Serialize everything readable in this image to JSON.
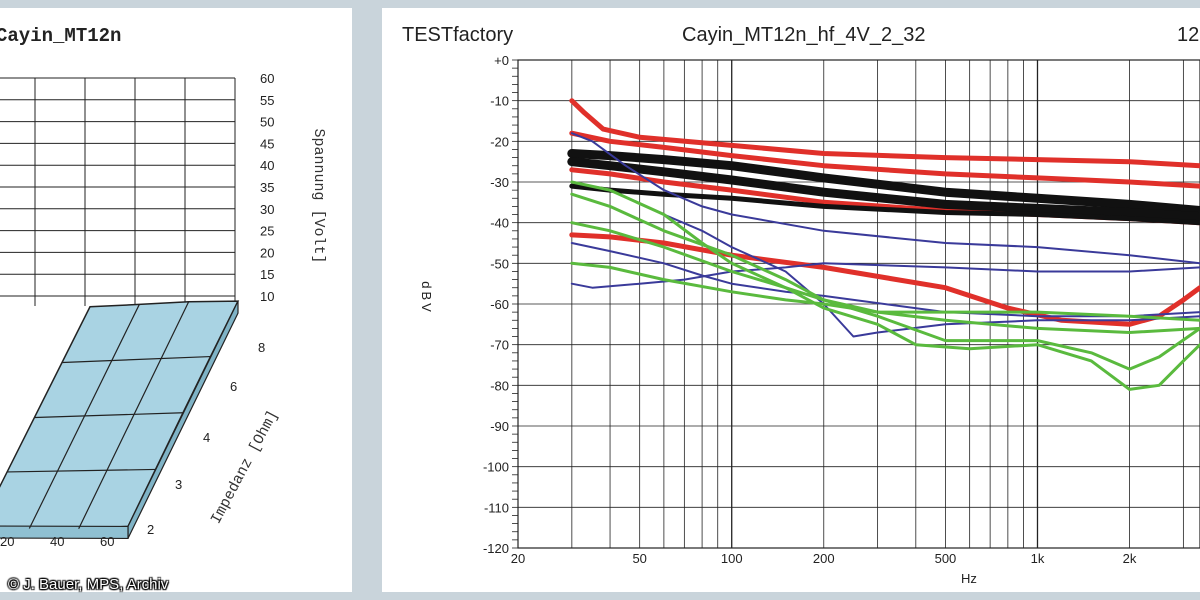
{
  "left_chart": {
    "title": "Cayin_MT12n",
    "ylabel": "Spannung [Volt]",
    "zlabel": "Impedanz [Ohm]",
    "voltage_ticks": [
      "60",
      "55",
      "50",
      "45",
      "40",
      "35",
      "30",
      "25",
      "20",
      "15",
      "10"
    ],
    "impedance_ticks": [
      "8",
      "6",
      "4",
      "3",
      "2"
    ],
    "x_ticks": [
      "20",
      "40",
      "60"
    ],
    "surface_color": "#a9d3e3",
    "copyright": "© J. Bauer, MPS, Archiv"
  },
  "chart_data": {
    "type": "line",
    "header_left": "TESTfactory",
    "title": "Cayin_MT12n_hf_4V_2_32",
    "header_right": "12",
    "xlabel": "Hz",
    "ylabel": "dBV",
    "x_scale": "log",
    "xlim": [
      20,
      3400
    ],
    "ylim": [
      -120,
      0
    ],
    "x_ticks": [
      {
        "v": 20,
        "label": "20"
      },
      {
        "v": 50,
        "label": "50"
      },
      {
        "v": 100,
        "label": "100"
      },
      {
        "v": 200,
        "label": "200"
      },
      {
        "v": 500,
        "label": "500"
      },
      {
        "v": 1000,
        "label": "1k"
      },
      {
        "v": 2000,
        "label": "2k"
      }
    ],
    "y_ticks": [
      {
        "v": 0,
        "label": "+0"
      },
      {
        "v": -10,
        "label": "-10"
      },
      {
        "v": -20,
        "label": "-20"
      },
      {
        "v": -30,
        "label": "-30"
      },
      {
        "v": -40,
        "label": "-40"
      },
      {
        "v": -50,
        "label": "-50"
      },
      {
        "v": -60,
        "label": "-60"
      },
      {
        "v": -70,
        "label": "-70"
      },
      {
        "v": -80,
        "label": "-80"
      },
      {
        "v": -90,
        "label": "-90"
      },
      {
        "v": -100,
        "label": "-100"
      },
      {
        "v": -110,
        "label": "-110"
      },
      {
        "v": -120,
        "label": "-120"
      }
    ],
    "grid": true,
    "series": [
      {
        "color": "#e0302a",
        "width": 5,
        "points": [
          [
            30,
            -10
          ],
          [
            33,
            -13
          ],
          [
            38,
            -17
          ],
          [
            50,
            -19
          ],
          [
            100,
            -21
          ],
          [
            200,
            -23
          ],
          [
            500,
            -24
          ],
          [
            1000,
            -24.5
          ],
          [
            2000,
            -25
          ],
          [
            3400,
            -26
          ]
        ]
      },
      {
        "color": "#e0302a",
        "width": 5,
        "points": [
          [
            30,
            -18
          ],
          [
            40,
            -20
          ],
          [
            60,
            -21.5
          ],
          [
            100,
            -23.5
          ],
          [
            200,
            -26
          ],
          [
            500,
            -28
          ],
          [
            1000,
            -29
          ],
          [
            2000,
            -30
          ],
          [
            3400,
            -31
          ]
        ]
      },
      {
        "color": "#e0302a",
        "width": 5,
        "points": [
          [
            30,
            -27
          ],
          [
            40,
            -28
          ],
          [
            60,
            -30
          ],
          [
            100,
            -32
          ],
          [
            200,
            -35
          ],
          [
            500,
            -37
          ],
          [
            1000,
            -38
          ],
          [
            2000,
            -39
          ],
          [
            3400,
            -40
          ]
        ]
      },
      {
        "color": "#e0302a",
        "width": 5,
        "points": [
          [
            30,
            -43
          ],
          [
            40,
            -43.5
          ],
          [
            60,
            -45
          ],
          [
            100,
            -48
          ],
          [
            200,
            -51
          ],
          [
            500,
            -56
          ],
          [
            800,
            -61
          ],
          [
            1200,
            -64
          ],
          [
            2000,
            -65
          ],
          [
            2500,
            -63
          ],
          [
            3000,
            -59
          ],
          [
            3400,
            -56
          ]
        ]
      },
      {
        "color": "#111111",
        "width": 9,
        "points": [
          [
            30,
            -23
          ],
          [
            40,
            -23.5
          ],
          [
            60,
            -24.5
          ],
          [
            100,
            -26
          ],
          [
            200,
            -29
          ],
          [
            500,
            -32.5
          ],
          [
            1000,
            -34
          ],
          [
            2000,
            -35.5
          ],
          [
            3400,
            -37
          ]
        ]
      },
      {
        "color": "#111111",
        "width": 9,
        "points": [
          [
            30,
            -25
          ],
          [
            40,
            -26
          ],
          [
            60,
            -27.5
          ],
          [
            100,
            -29.5
          ],
          [
            200,
            -32.5
          ],
          [
            500,
            -35.5
          ],
          [
            1000,
            -36.5
          ],
          [
            2000,
            -37.5
          ],
          [
            3400,
            -38.5
          ]
        ]
      },
      {
        "color": "#111111",
        "width": 5,
        "points": [
          [
            30,
            -31
          ],
          [
            40,
            -32
          ],
          [
            60,
            -33
          ],
          [
            100,
            -34
          ],
          [
            200,
            -36
          ],
          [
            500,
            -37.5
          ],
          [
            1000,
            -38
          ],
          [
            2000,
            -39
          ],
          [
            3400,
            -40
          ]
        ]
      },
      {
        "color": "#3a3a9a",
        "width": 2,
        "points": [
          [
            30,
            -18
          ],
          [
            35,
            -20
          ],
          [
            45,
            -26
          ],
          [
            60,
            -32
          ],
          [
            80,
            -36
          ],
          [
            100,
            -38
          ],
          [
            200,
            -42
          ],
          [
            500,
            -45
          ],
          [
            1000,
            -46
          ],
          [
            2000,
            -48
          ],
          [
            3400,
            -50
          ]
        ]
      },
      {
        "color": "#3a3a9a",
        "width": 2,
        "points": [
          [
            30,
            -30
          ],
          [
            40,
            -32
          ],
          [
            60,
            -38
          ],
          [
            80,
            -42
          ],
          [
            100,
            -46
          ],
          [
            150,
            -52
          ],
          [
            200,
            -60
          ],
          [
            250,
            -68
          ],
          [
            300,
            -67
          ],
          [
            500,
            -65
          ],
          [
            1000,
            -64
          ],
          [
            2000,
            -64
          ],
          [
            3400,
            -63
          ]
        ]
      },
      {
        "color": "#3a3a9a",
        "width": 2,
        "points": [
          [
            30,
            -45
          ],
          [
            40,
            -47
          ],
          [
            60,
            -50
          ],
          [
            80,
            -53
          ],
          [
            100,
            -55
          ],
          [
            150,
            -57
          ],
          [
            200,
            -58
          ],
          [
            500,
            -62
          ],
          [
            1000,
            -63
          ],
          [
            2000,
            -63
          ],
          [
            3400,
            -62
          ]
        ]
      },
      {
        "color": "#3a3a9a",
        "width": 2,
        "points": [
          [
            30,
            -55
          ],
          [
            35,
            -56
          ],
          [
            50,
            -55
          ],
          [
            70,
            -54
          ],
          [
            100,
            -52
          ],
          [
            150,
            -51
          ],
          [
            200,
            -50
          ],
          [
            500,
            -51
          ],
          [
            1000,
            -52
          ],
          [
            2000,
            -52
          ],
          [
            3400,
            -51
          ]
        ]
      },
      {
        "color": "#5aba3e",
        "width": 3,
        "points": [
          [
            30,
            -30
          ],
          [
            40,
            -32
          ],
          [
            60,
            -38
          ],
          [
            80,
            -45
          ],
          [
            100,
            -50
          ],
          [
            150,
            -56
          ],
          [
            200,
            -61
          ],
          [
            300,
            -65
          ],
          [
            400,
            -70
          ],
          [
            600,
            -71
          ],
          [
            1000,
            -70
          ],
          [
            1500,
            -74
          ],
          [
            2000,
            -81
          ],
          [
            2500,
            -80
          ],
          [
            3000,
            -74
          ],
          [
            3400,
            -70
          ]
        ]
      },
      {
        "color": "#5aba3e",
        "width": 3,
        "points": [
          [
            30,
            -33
          ],
          [
            40,
            -36
          ],
          [
            60,
            -42
          ],
          [
            100,
            -48
          ],
          [
            150,
            -54
          ],
          [
            200,
            -59
          ],
          [
            300,
            -62
          ],
          [
            500,
            -64
          ],
          [
            1000,
            -66
          ],
          [
            2000,
            -67
          ],
          [
            3400,
            -66
          ]
        ]
      },
      {
        "color": "#5aba3e",
        "width": 3,
        "points": [
          [
            30,
            -40
          ],
          [
            40,
            -42
          ],
          [
            60,
            -46
          ],
          [
            100,
            -52
          ],
          [
            150,
            -56
          ],
          [
            200,
            -59
          ],
          [
            300,
            -63
          ],
          [
            500,
            -69
          ],
          [
            1000,
            -69
          ],
          [
            1500,
            -72
          ],
          [
            2000,
            -76
          ],
          [
            2500,
            -73
          ],
          [
            3400,
            -66
          ]
        ]
      },
      {
        "color": "#5aba3e",
        "width": 3,
        "points": [
          [
            30,
            -50
          ],
          [
            40,
            -51
          ],
          [
            60,
            -54
          ],
          [
            100,
            -57
          ],
          [
            150,
            -59
          ],
          [
            200,
            -60
          ],
          [
            300,
            -62
          ],
          [
            500,
            -62
          ],
          [
            1000,
            -62
          ],
          [
            2000,
            -63
          ],
          [
            3400,
            -64
          ]
        ]
      }
    ]
  }
}
